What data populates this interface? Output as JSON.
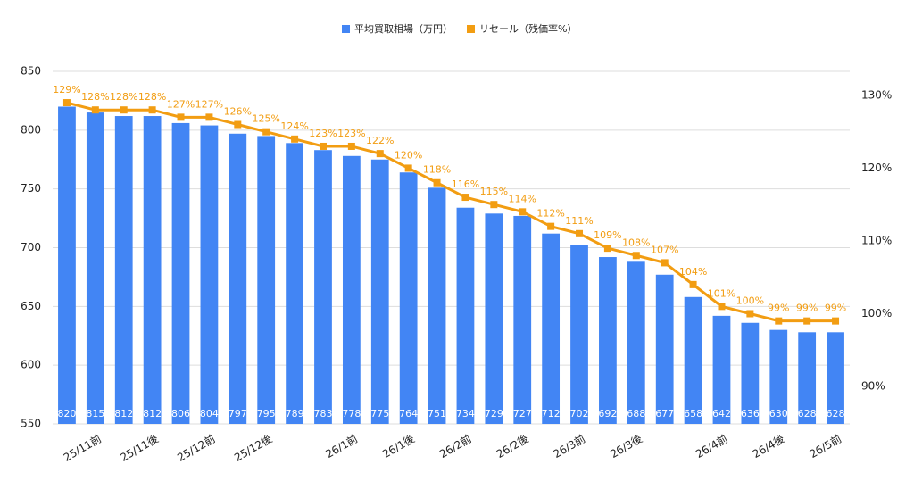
{
  "chart_data": {
    "type": "bar_line",
    "categories": [
      null,
      "25/11前",
      null,
      "25/11後",
      null,
      "25/12前",
      null,
      "25/12後",
      null,
      null,
      "26/1前",
      null,
      "26/1後",
      null,
      "26/2前",
      null,
      "26/2後",
      null,
      "26/3前",
      null,
      "26/3後",
      null,
      null,
      "26/4前",
      null,
      "26/4後",
      null,
      "26/5前"
    ],
    "series": [
      {
        "name": "平均買取相場（万円）",
        "color": "#4285f4",
        "type": "bar",
        "values": [
          820,
          815,
          812,
          812,
          806,
          804,
          797,
          795,
          789,
          783,
          778,
          775,
          764,
          751,
          734,
          729,
          727,
          712,
          702,
          692,
          688,
          677,
          658,
          642,
          636,
          630,
          628,
          628
        ]
      },
      {
        "name": "リセール（残価率%）",
        "color": "#f29d12",
        "type": "line",
        "axis": "y2",
        "values": [
          129,
          128,
          128,
          128,
          127,
          127,
          126,
          125,
          124,
          123,
          123,
          122,
          120,
          118,
          116,
          115,
          114,
          112,
          111,
          109,
          108,
          107,
          104,
          101,
          100,
          99,
          99,
          99
        ],
        "value_labels": [
          "129%",
          "128%",
          "128%",
          "128%",
          "127%",
          "127%",
          "126%",
          "125%",
          "124%",
          "123%",
          "123%",
          "122%",
          "120%",
          "118%",
          "116%",
          "115%",
          "114%",
          "112%",
          "111%",
          "109%",
          "108%",
          "107%",
          "104%",
          "101%",
          "100%",
          "99%",
          "99%",
          "99%"
        ]
      }
    ],
    "ylim": [
      550,
      850
    ],
    "yticks": [
      550,
      600,
      650,
      700,
      750,
      800,
      850
    ],
    "y2lim": [
      84.85,
      133.3
    ],
    "y2ticks": [
      {
        "value": 90,
        "label": "90%"
      },
      {
        "value": 100,
        "label": "100%"
      },
      {
        "value": 110,
        "label": "110%"
      },
      {
        "value": 120,
        "label": "120%"
      },
      {
        "value": 130,
        "label": "130%"
      }
    ],
    "grid": true,
    "legend": "top"
  }
}
